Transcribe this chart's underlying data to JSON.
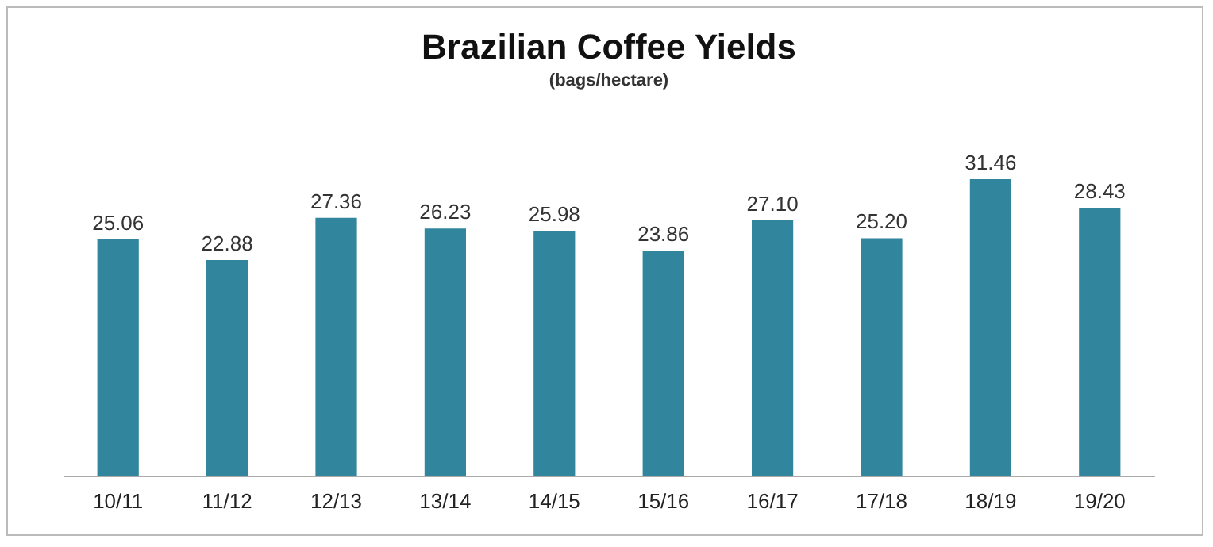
{
  "chart_data": {
    "type": "bar",
    "title": "Brazilian Coffee Yields",
    "subtitle": "(bags/hectare)",
    "categories": [
      "10/11",
      "11/12",
      "12/13",
      "13/14",
      "14/15",
      "15/16",
      "16/17",
      "17/18",
      "18/19",
      "19/20"
    ],
    "values": [
      25.06,
      22.88,
      27.36,
      26.23,
      25.98,
      23.86,
      27.1,
      25.2,
      31.46,
      28.43
    ],
    "value_labels": [
      "25.06",
      "22.88",
      "27.36",
      "26.23",
      "25.98",
      "23.86",
      "27.10",
      "25.20",
      "31.46",
      "28.43"
    ],
    "color": "#31859c"
  }
}
